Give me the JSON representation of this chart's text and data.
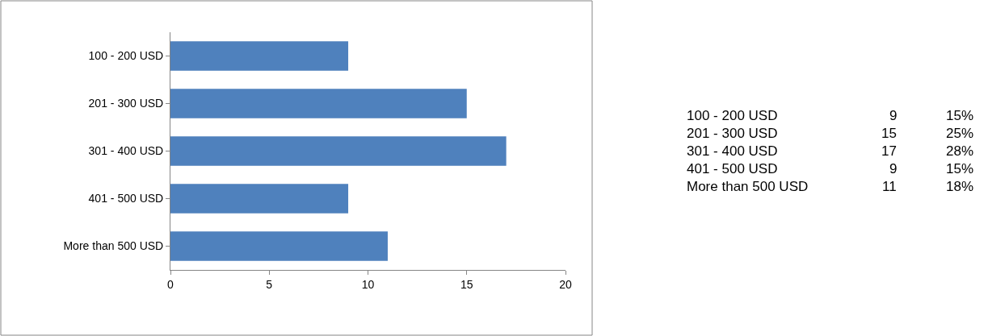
{
  "chart_data": [
    {
      "type": "bar",
      "orientation": "horizontal",
      "categories": [
        "100 - 200 USD",
        "201 - 300 USD",
        "301 - 400 USD",
        "401 - 500 USD",
        "More than 500 USD"
      ],
      "values": [
        9,
        15,
        17,
        9,
        11
      ],
      "color": "#4f81bd",
      "xlim": [
        0,
        20
      ],
      "xticks": [
        0,
        5,
        10,
        15,
        20
      ]
    },
    {
      "type": "other",
      "annotations": [
        "100 - 200 USD",
        "9",
        "15%",
        "201 - 300 USD",
        "15",
        "25%",
        "301 - 400 USD",
        "17",
        "28%",
        "401 - 500 USD",
        "9",
        "15%",
        "More than 500 USD",
        "11",
        "18%"
      ]
    }
  ]
}
